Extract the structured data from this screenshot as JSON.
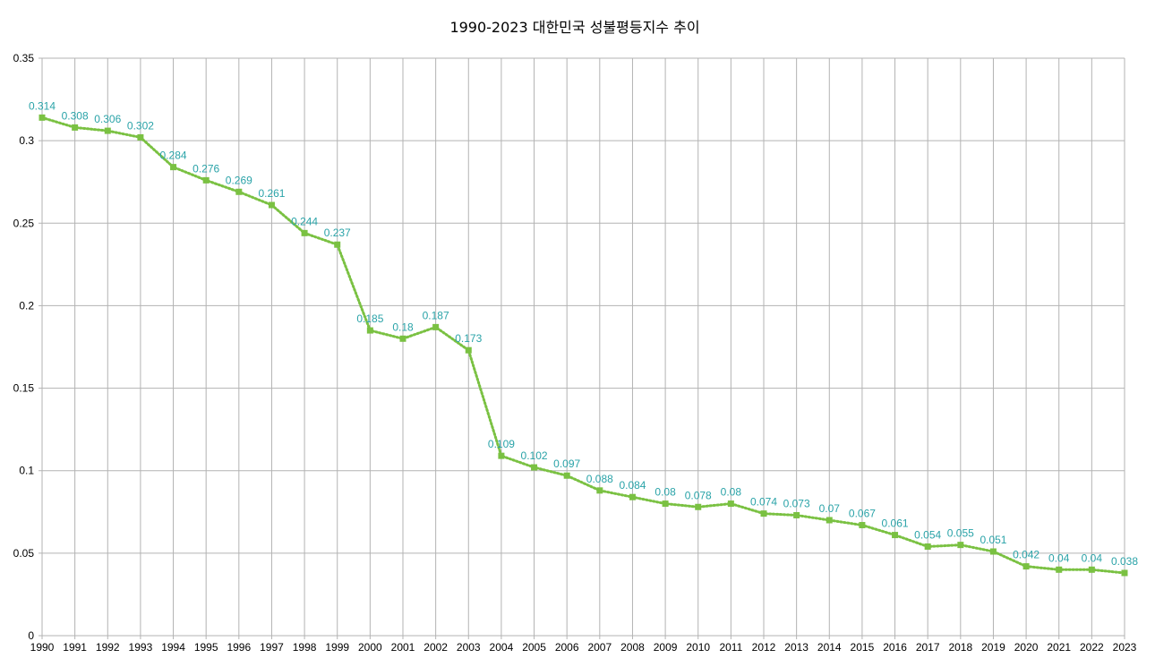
{
  "chart_data": {
    "type": "line",
    "title": "1990-2023  대한민국 성불평등지수 추이",
    "xlabel": "",
    "ylabel": "",
    "x": [
      "1990",
      "1991",
      "1992",
      "1993",
      "1994",
      "1995",
      "1996",
      "1997",
      "1998",
      "1999",
      "2000",
      "2001",
      "2002",
      "2003",
      "2004",
      "2005",
      "2006",
      "2007",
      "2008",
      "2009",
      "2010",
      "2011",
      "2012",
      "2013",
      "2014",
      "2015",
      "2016",
      "2017",
      "2018",
      "2019",
      "2020",
      "2021",
      "2022",
      "2023"
    ],
    "series": [
      {
        "values": [
          0.314,
          0.308,
          0.306,
          0.302,
          0.284,
          0.276,
          0.269,
          0.261,
          0.244,
          0.237,
          0.185,
          0.18,
          0.187,
          0.173,
          0.109,
          0.102,
          0.097,
          0.088,
          0.084,
          0.08,
          0.078,
          0.08,
          0.074,
          0.073,
          0.07,
          0.067,
          0.061,
          0.054,
          0.055,
          0.051,
          0.042,
          0.04,
          0.04,
          0.038
        ],
        "labels": [
          "0.314",
          "0.308",
          "0.306",
          "0.302",
          "0.284",
          "0.276",
          "0.269",
          "0.261",
          "0.244",
          "0.237",
          "0.185",
          "0.18",
          "0.187",
          "0.173",
          "0.109",
          "0.102",
          "0.097",
          "0.088",
          "0.084",
          "0.08",
          "0.078",
          "0.08",
          "0.074",
          "0.073",
          "0.07",
          "0.067",
          "0.061",
          "0.054",
          "0.055",
          "0.051",
          "0.042",
          "0.04",
          "0.04",
          "0.038"
        ],
        "color": "#7ac142",
        "label_color": "#2aa3a8",
        "line_style": "dotted",
        "marker": "square"
      }
    ],
    "yticks": [
      "0",
      "0.05",
      "0.1",
      "0.15",
      "0.2",
      "0.25",
      "0.3",
      "0.35"
    ],
    "ylim": [
      0,
      0.35
    ],
    "grid": true,
    "legend": "none"
  }
}
